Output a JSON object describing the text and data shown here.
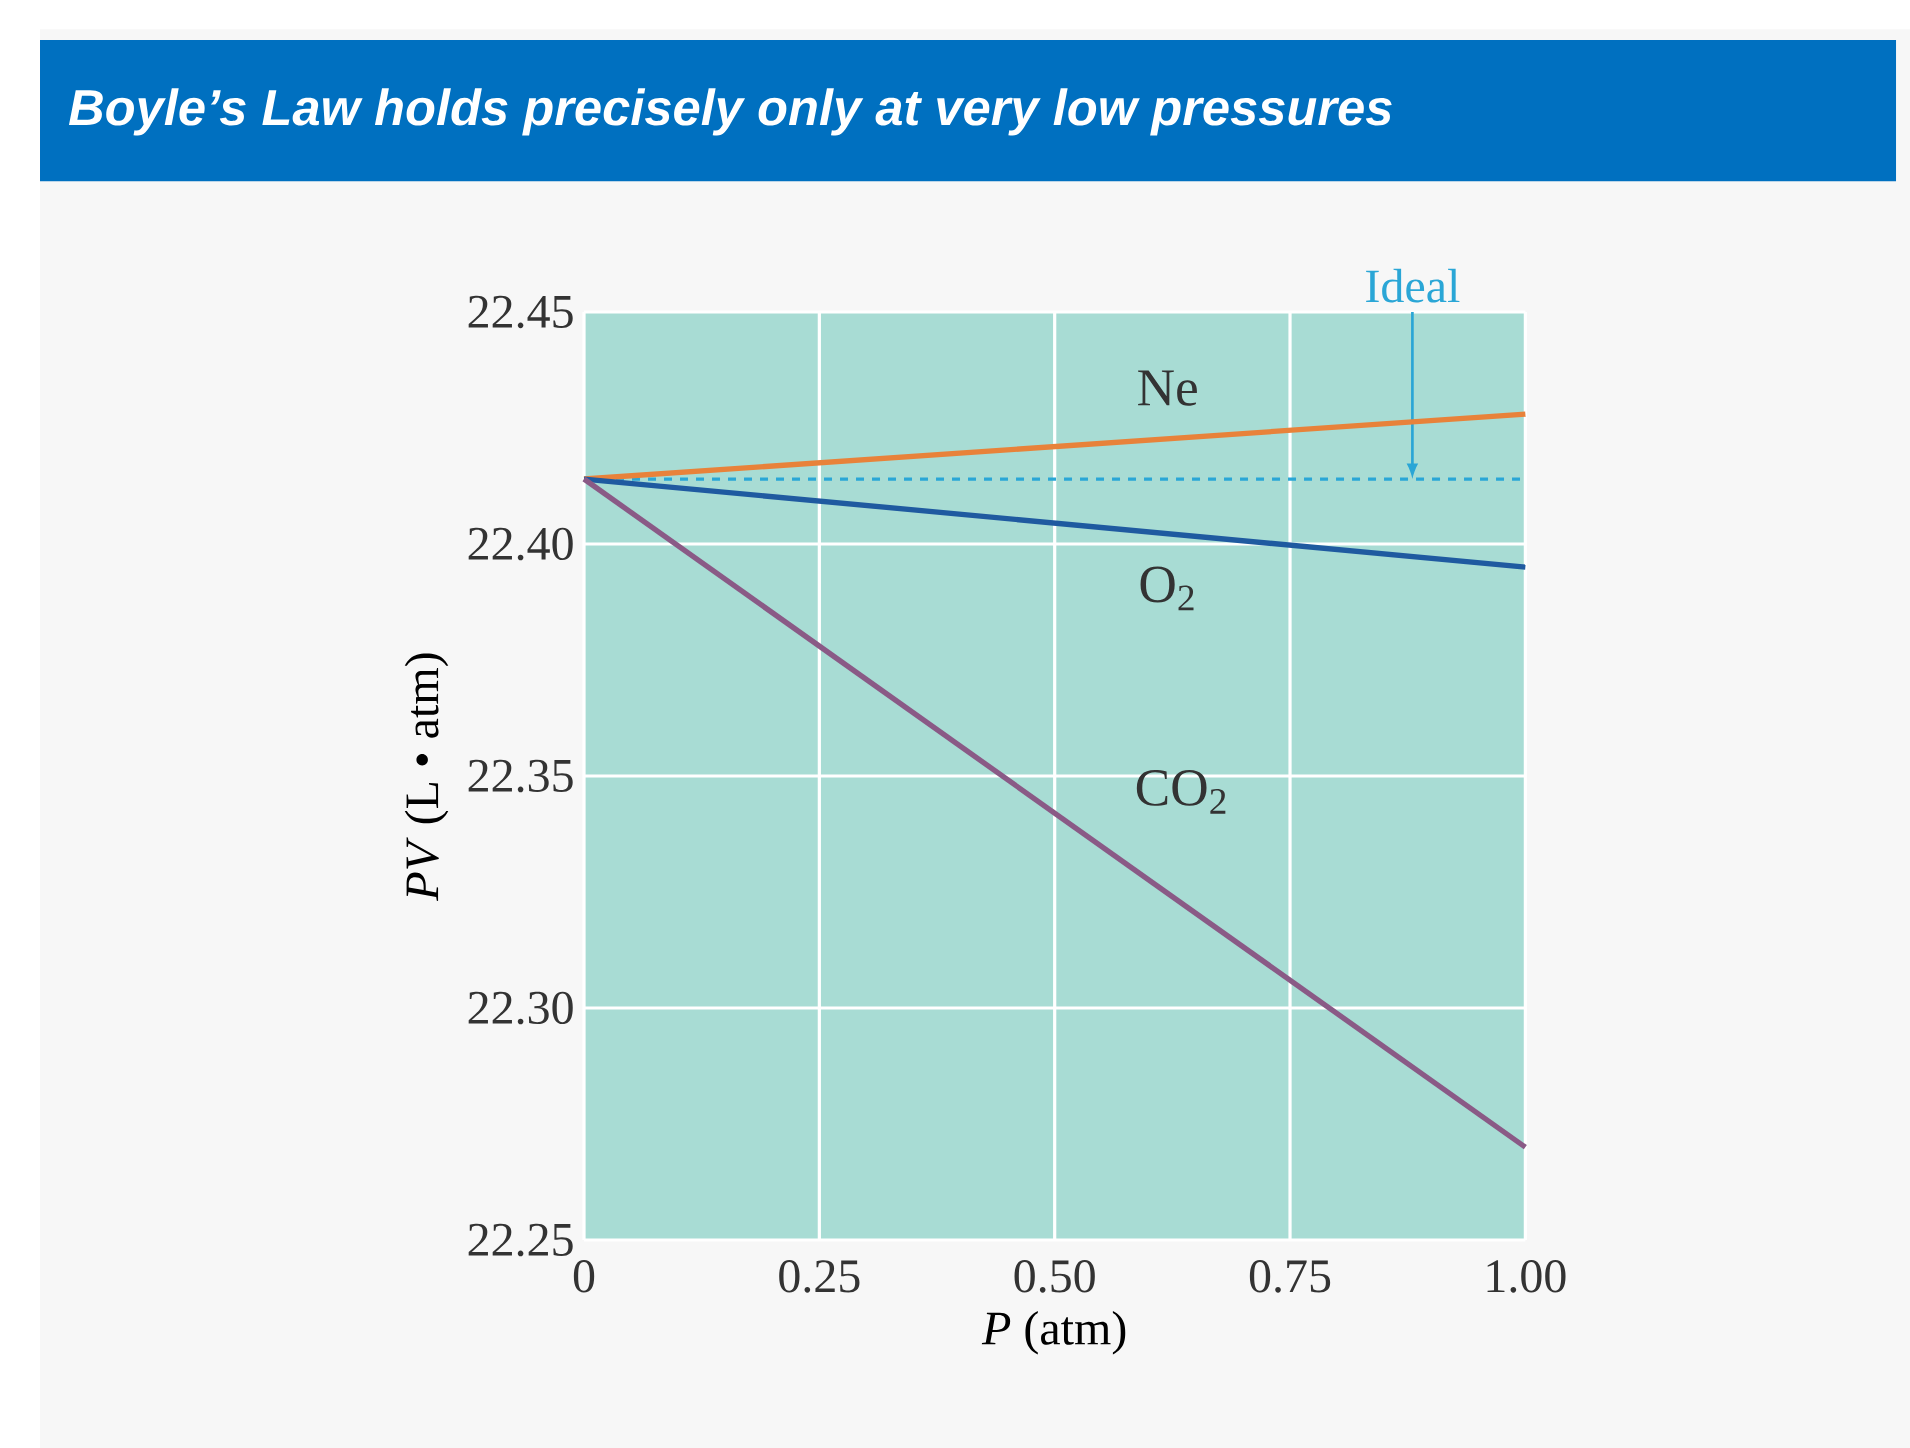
{
  "chart_data": {
    "type": "line",
    "title": "**Boyle’s Law** holds precisely only at **very low pressures**",
    "xlabel": "*P* (atm)",
    "ylabel": "*PV* (L • atm)",
    "x": [
      0,
      1.0
    ],
    "series": [
      {
        "name": "Ne",
        "color": "#e8823a",
        "values": [
          22.414,
          22.428
        ]
      },
      {
        "name": "O$_{2}$",
        "color": "#1f5aa0",
        "values": [
          22.414,
          22.395
        ]
      },
      {
        "name": "CO$_{2}$",
        "color": "#8a5a86",
        "values": [
          22.414,
          22.27
        ]
      }
    ],
    "ref_lines": [
      {
        "axis": "y",
        "value": 22.414,
        "label": "Ideal",
        "color": "#2aa6d6",
        "line_style": "dashed"
      }
    ],
    "xlim": [
      0,
      1.0
    ],
    "ylim": [
      22.25,
      22.45
    ],
    "xticks": [
      0,
      0.25,
      {
        "value": 0.5,
        "label": "0.50"
      },
      0.75,
      {
        "value": 1.0,
        "label": "1.00"
      }
    ],
    "yticks": [
      22.25,
      {
        "value": 22.3,
        "label": "22.30"
      },
      22.35,
      {
        "value": 22.4,
        "label": "22.40"
      },
      22.45
    ],
    "grid": true,
    "marker": "none",
    "line_style": "solid"
  }
}
